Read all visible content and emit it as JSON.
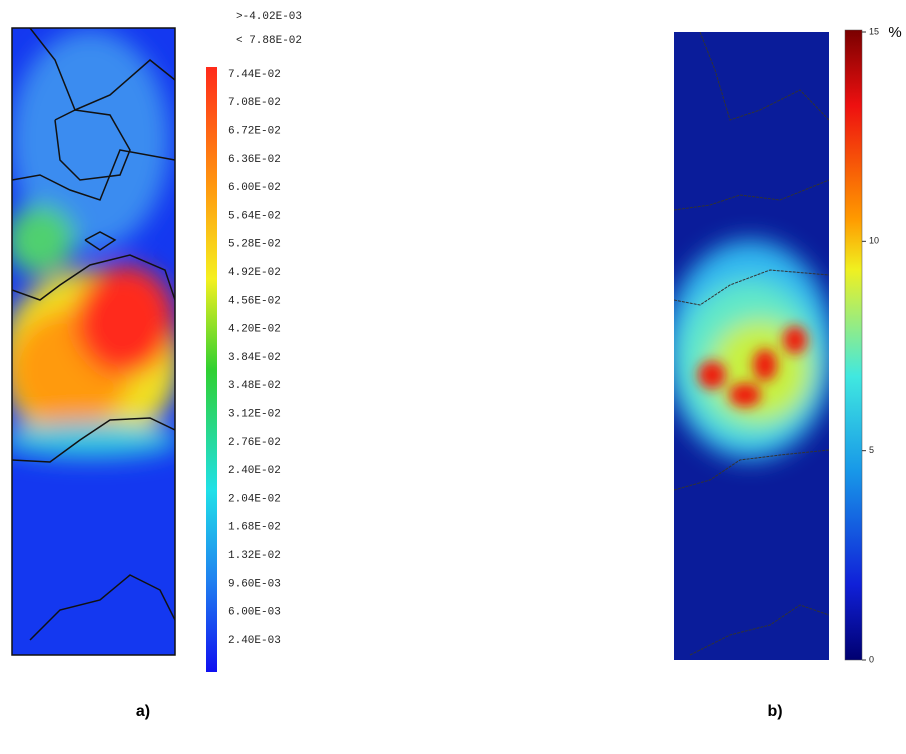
{
  "panel_a": {
    "header": [
      ">-4.02E-03",
      "< 7.88E-02"
    ],
    "colorbar_labels": [
      "7.44E-02",
      "7.08E-02",
      "6.72E-02",
      "6.36E-02",
      "6.00E-02",
      "5.64E-02",
      "5.28E-02",
      "4.92E-02",
      "4.56E-02",
      "4.20E-02",
      "3.84E-02",
      "3.48E-02",
      "3.12E-02",
      "2.76E-02",
      "2.40E-02",
      "2.04E-02",
      "1.68E-02",
      "1.32E-02",
      "9.60E-03",
      "6.00E-03",
      "2.40E-03"
    ],
    "caption": "a)"
  },
  "panel_b": {
    "range": [
      0,
      15
    ],
    "ticks": [
      0,
      5,
      10,
      15
    ],
    "unit": "%",
    "caption": "b)"
  }
}
